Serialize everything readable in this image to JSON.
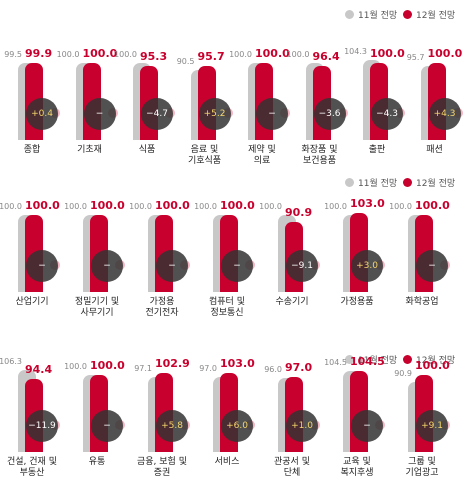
{
  "chart_data": [
    {
      "type": "bar",
      "categories": [
        "종합",
        "기초재",
        "식품",
        "음료 및\n기호식품",
        "제약 및\n의료",
        "화장품 및\n보건용품",
        "출판",
        "패션"
      ],
      "series": [
        {
          "name": "11월 전망",
          "color": "#c8c8c8",
          "values": [
            99.5,
            100,
            100,
            90.5,
            100,
            100,
            104.3,
            95.7
          ],
          "value_labels": [
            "99.5",
            "100.0",
            "100.0",
            "90.5",
            "100.0",
            "100.0",
            "104.3",
            "95.7"
          ]
        },
        {
          "name": "12월 전망",
          "color": "#c8002d",
          "values": [
            99.9,
            100,
            95.3,
            95.7,
            100,
            96.4,
            100,
            100
          ],
          "value_labels": [
            "99.9",
            "100.0",
            "95.3",
            "95.7",
            "100.0",
            "96.4",
            "100.0",
            "100.0"
          ]
        }
      ],
      "changes": [
        0.4,
        0,
        -4.7,
        5.2,
        0,
        -3.6,
        -4.3,
        4.3
      ],
      "change_labels": [
        "+0.4",
        "−",
        "−4.7",
        "+5.2",
        "−",
        "−3.6",
        "−4.3",
        "+4.3"
      ]
    },
    {
      "type": "bar",
      "categories": [
        "산업기기",
        "정밀기기 및\n사무기기",
        "가정용\n전기전자",
        "컴퓨터 및\n정보통신",
        "수송기기",
        "가정용품",
        "화학공업"
      ],
      "series": [
        {
          "name": "11월 전망",
          "color": "#c8c8c8",
          "values": [
            100,
            100,
            100,
            100,
            100,
            100,
            100
          ],
          "value_labels": [
            "100.0",
            "100.0",
            "100.0",
            "100.0",
            "100.0",
            "100.0",
            "100.0"
          ]
        },
        {
          "name": "12월 전망",
          "color": "#c8002d",
          "values": [
            100,
            100,
            100,
            100,
            90.9,
            103,
            100
          ],
          "value_labels": [
            "100.0",
            "100.0",
            "100.0",
            "100.0",
            "90.9",
            "103.0",
            "100.0"
          ]
        }
      ],
      "changes": [
        0,
        0,
        0,
        0,
        -9.1,
        3,
        0
      ],
      "change_labels": [
        "−",
        "−",
        "−",
        "−",
        "−9.1",
        "+3.0",
        "−"
      ]
    },
    {
      "type": "bar",
      "categories": [
        "건설, 건재 및\n부동산",
        "유통",
        "금융, 보험 및\n증권",
        "서비스",
        "관공서 및\n단체",
        "교육 및\n복지후생",
        "그룹 및\n기업광고"
      ],
      "series": [
        {
          "name": "11월 전망",
          "color": "#c8c8c8",
          "values": [
            106.3,
            100,
            97.1,
            97,
            96,
            104.5,
            90.9
          ],
          "value_labels": [
            "106.3",
            "100.0",
            "97.1",
            "97.0",
            "96.0",
            "104.5",
            "90.9"
          ]
        },
        {
          "name": "12월 전망",
          "color": "#c8002d",
          "values": [
            94.4,
            100,
            102.9,
            103,
            97,
            104.5,
            100
          ],
          "value_labels": [
            "94.4",
            "100.0",
            "102.9",
            "103.0",
            "97.0",
            "104.5",
            "100.0"
          ]
        }
      ],
      "changes": [
        -11.9,
        0,
        5.8,
        6,
        1,
        0,
        9.1
      ],
      "change_labels": [
        "−11.9",
        "−",
        "+5.8",
        "+6.0",
        "+1.0",
        "−",
        "+9.1"
      ]
    }
  ]
}
